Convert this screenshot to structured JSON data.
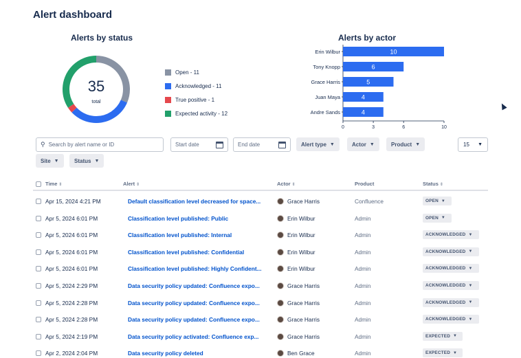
{
  "page": {
    "title": "Alert dashboard"
  },
  "status_chart": {
    "title": "Alerts by status",
    "total": "35",
    "total_label": "total",
    "legend": [
      {
        "label": "Open - 11",
        "color": "#8993a4"
      },
      {
        "label": "Acknowledged - 11",
        "color": "#2c6cf0"
      },
      {
        "label": "True positive - 1",
        "color": "#e5484d"
      },
      {
        "label": "Expected activity - 12",
        "color": "#22a06b"
      }
    ]
  },
  "actor_chart": {
    "title": "Alerts by actor"
  },
  "chart_data": [
    {
      "type": "pie",
      "title": "Alerts by status",
      "categories": [
        "Open",
        "Acknowledged",
        "True positive",
        "Expected activity"
      ],
      "values": [
        11,
        11,
        1,
        12
      ],
      "colors": [
        "#8993a4",
        "#2c6cf0",
        "#e5484d",
        "#22a06b"
      ],
      "center_text": "35",
      "center_subtext": "total",
      "legend_position": "right"
    },
    {
      "type": "bar",
      "orientation": "horizontal",
      "title": "Alerts by actor",
      "categories": [
        "Erin Wilbur",
        "Tony Knopp",
        "Grace Harris",
        "Juan Maya",
        "Andre Sands"
      ],
      "values": [
        10,
        6,
        5,
        4,
        4
      ],
      "xticks": [
        "0",
        "3",
        "6",
        "10"
      ],
      "xlim": [
        0,
        10
      ],
      "color": "#2c6cf0",
      "grid": false
    }
  ],
  "filters": {
    "search_placeholder": "Search by alert name or ID",
    "start_date_placeholder": "Start date",
    "end_date_placeholder": "End date",
    "alert_type": "Alert type",
    "actor": "Actor",
    "product": "Product",
    "site": "Site",
    "status": "Status",
    "page_size": "15"
  },
  "table": {
    "headers": {
      "time": "Time",
      "alert": "Alert",
      "actor": "Actor",
      "product": "Product",
      "status": "Status"
    },
    "rows": [
      {
        "time": "Apr 15, 2024  4:21 PM",
        "alert": "Default classification level decreased for space...",
        "actor": "Grace Harris",
        "product": "Confluence",
        "status": "OPEN"
      },
      {
        "time": "Apr 5, 2024  6:01 PM",
        "alert": "Classification level published: Public",
        "actor": "Erin Wilbur",
        "product": "Admin",
        "status": "OPEN"
      },
      {
        "time": "Apr 5, 2024  6:01 PM",
        "alert": "Classification level published: Internal",
        "actor": "Erin Wilbur",
        "product": "Admin",
        "status": "ACKNOWLEDGED"
      },
      {
        "time": "Apr 5, 2024  6:01 PM",
        "alert": "Classification level published: Confidential",
        "actor": "Erin Wilbur",
        "product": "Admin",
        "status": "ACKNOWLEDGED"
      },
      {
        "time": "Apr 5, 2024  6:01 PM",
        "alert": "Classification level published: Highly Confident...",
        "actor": "Erin Wilbur",
        "product": "Admin",
        "status": "ACKNOWLEDGED"
      },
      {
        "time": "Apr 5, 2024  2:29 PM",
        "alert": "Data security policy updated: Confluence expo...",
        "actor": "Grace Harris",
        "product": "Admin",
        "status": "ACKNOWLEDGED"
      },
      {
        "time": "Apr 5, 2024  2:28 PM",
        "alert": "Data security policy updated: Confluence expo...",
        "actor": "Grace Harris",
        "product": "Admin",
        "status": "ACKNOWLEDGED"
      },
      {
        "time": "Apr 5, 2024  2:28 PM",
        "alert": "Data security policy updated: Confluence expo...",
        "actor": "Grace Harris",
        "product": "Admin",
        "status": "ACKNOWLEDGED"
      },
      {
        "time": "Apr 5, 2024  2:19 PM",
        "alert": "Data security policy activated: Confluence exp...",
        "actor": "Grace Harris",
        "product": "Admin",
        "status": "EXPECTED"
      },
      {
        "time": "Apr 2, 2024  2:04 PM",
        "alert": "Data security policy deleted",
        "actor": "Ben Grace",
        "product": "Admin",
        "status": "EXPECTED"
      }
    ]
  }
}
